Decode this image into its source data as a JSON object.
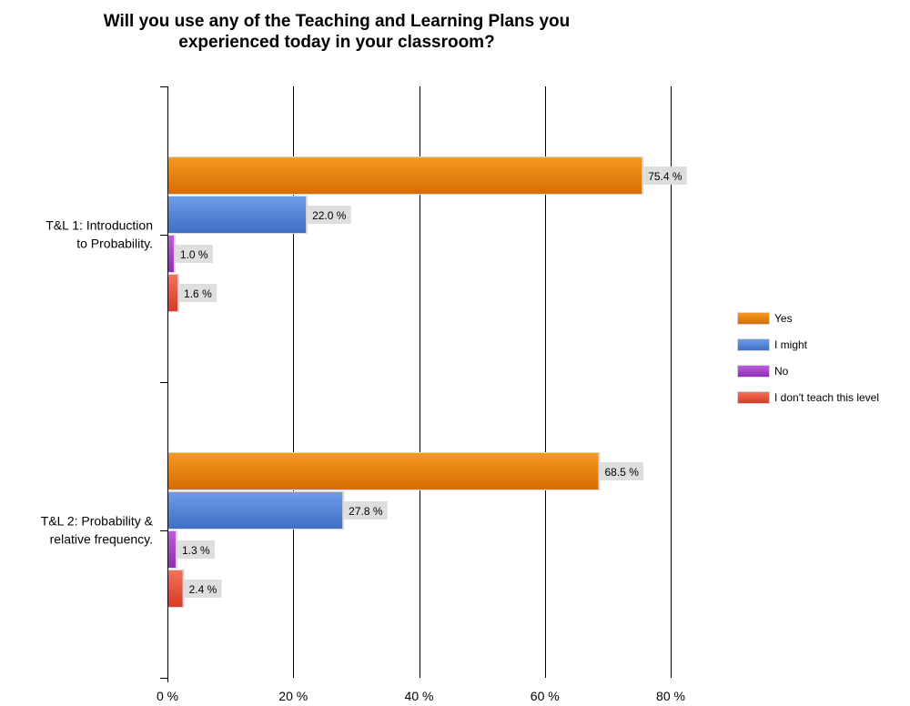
{
  "chart_data": {
    "type": "bar",
    "orientation": "horizontal",
    "title": "Will you use any of the Teaching and Learning Plans you experienced today in your classroom?",
    "title_lines": [
      "Will you use any of the Teaching and Learning Plans you",
      "experienced today in your classroom?"
    ],
    "categories": [
      {
        "name": "T&L 1: Introduction to Probability.",
        "lines": [
          "T&L 1: Introduction",
          "to Probability."
        ]
      },
      {
        "name": "T&L 2: Probability & relative frequency.",
        "lines": [
          "T&L 2: Probability &",
          "relative frequency."
        ]
      }
    ],
    "series": [
      {
        "name": "Yes",
        "color": "#e47b00",
        "values": [
          75.4,
          68.5
        ],
        "labels": [
          "75.4 %",
          "68.5 %"
        ]
      },
      {
        "name": "I might",
        "color": "#4a7fd6",
        "values": [
          22.0,
          27.8
        ],
        "labels": [
          "22.0 %",
          "27.8 %"
        ]
      },
      {
        "name": "No",
        "color": "#a23ec4",
        "values": [
          1.0,
          1.3
        ],
        "labels": [
          "1.0 %",
          "1.3 %"
        ]
      },
      {
        "name": "I don't teach this level",
        "color": "#e84c36",
        "values": [
          1.6,
          2.4
        ],
        "labels": [
          "1.6 %",
          "2.4 %"
        ]
      }
    ],
    "xlim": [
      0,
      80
    ],
    "xticks": [
      0,
      20,
      40,
      60,
      80
    ],
    "xtick_labels": [
      "0 %",
      "20 %",
      "40 %",
      "60 %",
      "80 %"
    ],
    "grid": true,
    "legend_position": "right"
  }
}
